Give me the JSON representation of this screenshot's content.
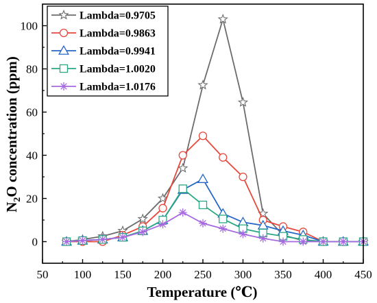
{
  "chart_data": {
    "type": "line",
    "xlabel": "Temperature (℃)",
    "ylabel": {
      "prefix": "N",
      "subscript": "2",
      "suffix": "O concentration (ppm)"
    },
    "xlim": [
      50,
      450
    ],
    "ylim": [
      -10,
      110
    ],
    "xticks": [
      50,
      100,
      150,
      200,
      250,
      300,
      350,
      400,
      450
    ],
    "yticks": [
      0,
      20,
      40,
      60,
      80,
      100
    ],
    "x": [
      80,
      100,
      125,
      150,
      175,
      200,
      225,
      250,
      275,
      300,
      325,
      350,
      375,
      400,
      425,
      450
    ],
    "grid": false,
    "legend_position": "top-left",
    "series": [
      {
        "name": "Lambda=0.9705",
        "color": "#6b6b6b",
        "marker": "star",
        "values": [
          0,
          1,
          2.5,
          5,
          10.5,
          20,
          34,
          72.5,
          103,
          64.5,
          13,
          3,
          0.5,
          0,
          0,
          0
        ]
      },
      {
        "name": "Lambda=0.9863",
        "color": "#e8473b",
        "marker": "circle",
        "values": [
          0,
          0,
          0,
          3,
          7,
          15.5,
          40,
          49,
          39,
          30,
          10,
          7,
          4.5,
          0,
          0,
          0
        ]
      },
      {
        "name": "Lambda=0.9941",
        "color": "#2566c8",
        "marker": "triangle",
        "values": [
          0,
          0.5,
          1,
          2,
          5,
          10,
          24,
          29,
          13,
          9,
          7.5,
          5,
          3,
          0,
          0,
          0
        ]
      },
      {
        "name": "Lambda=1.0020",
        "color": "#2aa784",
        "marker": "square",
        "values": [
          0,
          0.5,
          1,
          2,
          5,
          10,
          24.5,
          17,
          10.5,
          6,
          4,
          2.5,
          1,
          0,
          0,
          0
        ]
      },
      {
        "name": "Lambda=1.0176",
        "color": "#a66ae0",
        "marker": "asterisk",
        "values": [
          0,
          0.5,
          1,
          2,
          4.5,
          8,
          13.5,
          8.5,
          6,
          3.5,
          1.5,
          0,
          0,
          0,
          0,
          0
        ]
      }
    ]
  }
}
